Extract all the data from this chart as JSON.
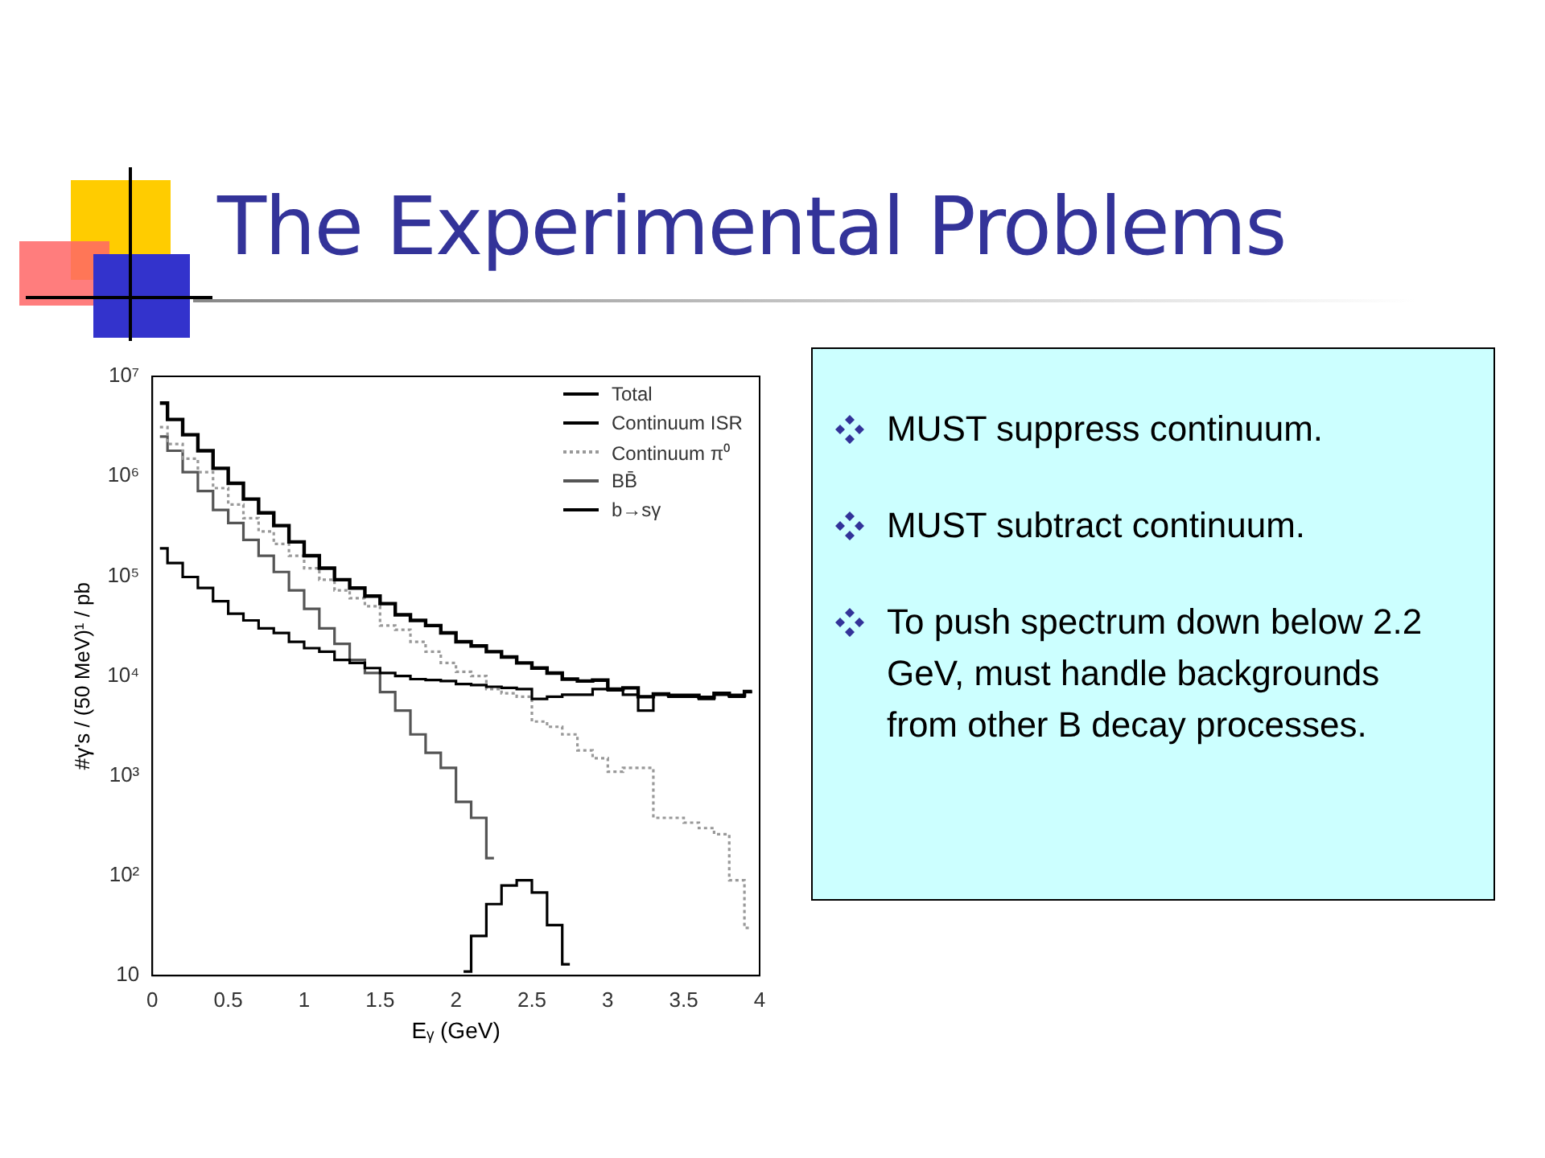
{
  "chart_data": {
    "type": "step",
    "title": "The Experimental Problems",
    "xlabel": "Eᵧ (GeV)",
    "ylabel": "#γ's / (50 MeV)¹ / pb",
    "x": [
      0.05,
      0.15,
      0.25,
      0.35,
      0.45,
      0.55,
      0.65,
      0.75,
      0.85,
      0.95,
      1.05,
      1.15,
      1.25,
      1.35,
      1.45,
      1.55,
      1.65,
      1.75,
      1.85,
      1.95,
      2.05,
      2.15,
      2.25,
      2.35,
      2.45,
      2.55,
      2.65,
      2.75,
      2.85,
      2.95,
      3.05,
      3.15,
      3.25,
      3.35,
      3.45,
      3.55,
      3.65,
      3.75,
      3.85,
      3.95
    ],
    "series": [
      {
        "name": "Total",
        "color": "#000000",
        "line_style": "solid",
        "values": [
          5400000,
          3700000,
          2600000,
          1800000,
          1200000,
          850000,
          590000,
          430000,
          320000,
          220000,
          160000,
          120000,
          92000,
          76000,
          63000,
          53000,
          41000,
          36000,
          32000,
          27000,
          22000,
          20000,
          17500,
          15500,
          13500,
          12000,
          10700,
          9300,
          8900,
          9100,
          7400,
          7600,
          6200,
          6600,
          6400,
          6400,
          6100,
          6700,
          6400,
          7000
        ]
      },
      {
        "name": "Continuum ISR",
        "color": "#000000",
        "line_style": "solid",
        "values": [
          190000,
          135000,
          98000,
          76000,
          56000,
          42000,
          36000,
          30000,
          27000,
          22000,
          19000,
          17500,
          14500,
          13500,
          12000,
          10700,
          10000,
          9300,
          9100,
          8900,
          8300,
          8100,
          7800,
          7600,
          7400,
          5900,
          6200,
          6500,
          6500,
          7400,
          7200,
          6500,
          4500,
          6500,
          6200,
          6200,
          5900,
          6500,
          6200,
          6900
        ]
      },
      {
        "name": "Continuum π⁰",
        "color": "#999999",
        "line_style": "dotted",
        "values": [
          3100000,
          2100000,
          1500000,
          1100000,
          760000,
          520000,
          380000,
          280000,
          210000,
          160000,
          120000,
          92000,
          72000,
          60000,
          50000,
          32000,
          29000,
          22000,
          17500,
          13500,
          11000,
          10000,
          7400,
          6700,
          6200,
          3500,
          3100,
          2600,
          1800,
          1500,
          1100,
          1200,
          1200,
          380,
          380,
          340,
          300,
          260,
          90,
          30
        ]
      },
      {
        "name": "BB̄",
        "color": "#555555",
        "line_style": "solid",
        "values": [
          2500000,
          1800000,
          1100000,
          710000,
          460000,
          340000,
          230000,
          160000,
          110000,
          72000,
          47000,
          30000,
          21000,
          14500,
          10700,
          6900,
          4500,
          2600,
          1700,
          1200,
          550,
          380,
          150,
          null,
          null,
          null,
          null,
          null,
          null,
          null,
          null,
          null,
          null,
          null,
          null,
          null,
          null,
          null,
          null,
          null
        ]
      },
      {
        "name": "b→sγ",
        "color": "#000000",
        "line_style": "solid",
        "values": [
          null,
          null,
          null,
          null,
          null,
          null,
          null,
          null,
          null,
          null,
          null,
          null,
          null,
          null,
          null,
          null,
          null,
          null,
          null,
          null,
          11,
          25,
          52,
          80,
          90,
          68,
          32,
          13,
          null,
          null,
          null,
          null,
          null,
          null,
          null,
          null,
          null,
          null,
          null,
          null
        ]
      }
    ],
    "log": "y",
    "xlim": [
      0,
      4
    ],
    "ylim": [
      10,
      10000000
    ],
    "xticks": [
      0,
      0.5,
      1,
      1.5,
      2,
      2.5,
      3,
      3.5,
      4
    ],
    "yticks": [
      {
        "value": 10,
        "label": "10"
      },
      {
        "value": 100,
        "label": "10²"
      },
      {
        "value": 1000,
        "label": "10³"
      },
      {
        "value": 10000,
        "label": "10⁴"
      },
      {
        "value": 100000,
        "label": "10⁵"
      },
      {
        "value": 1000000,
        "label": "10⁶"
      },
      {
        "value": 10000000,
        "label": "10⁷"
      }
    ],
    "grid": false,
    "legend": "top right",
    "annotations": [
      "MUST suppress continuum.",
      "MUST subtract continuum.",
      "To push spectrum down below 2.2 GeV, must handle backgrounds from other B decay processes."
    ]
  }
}
